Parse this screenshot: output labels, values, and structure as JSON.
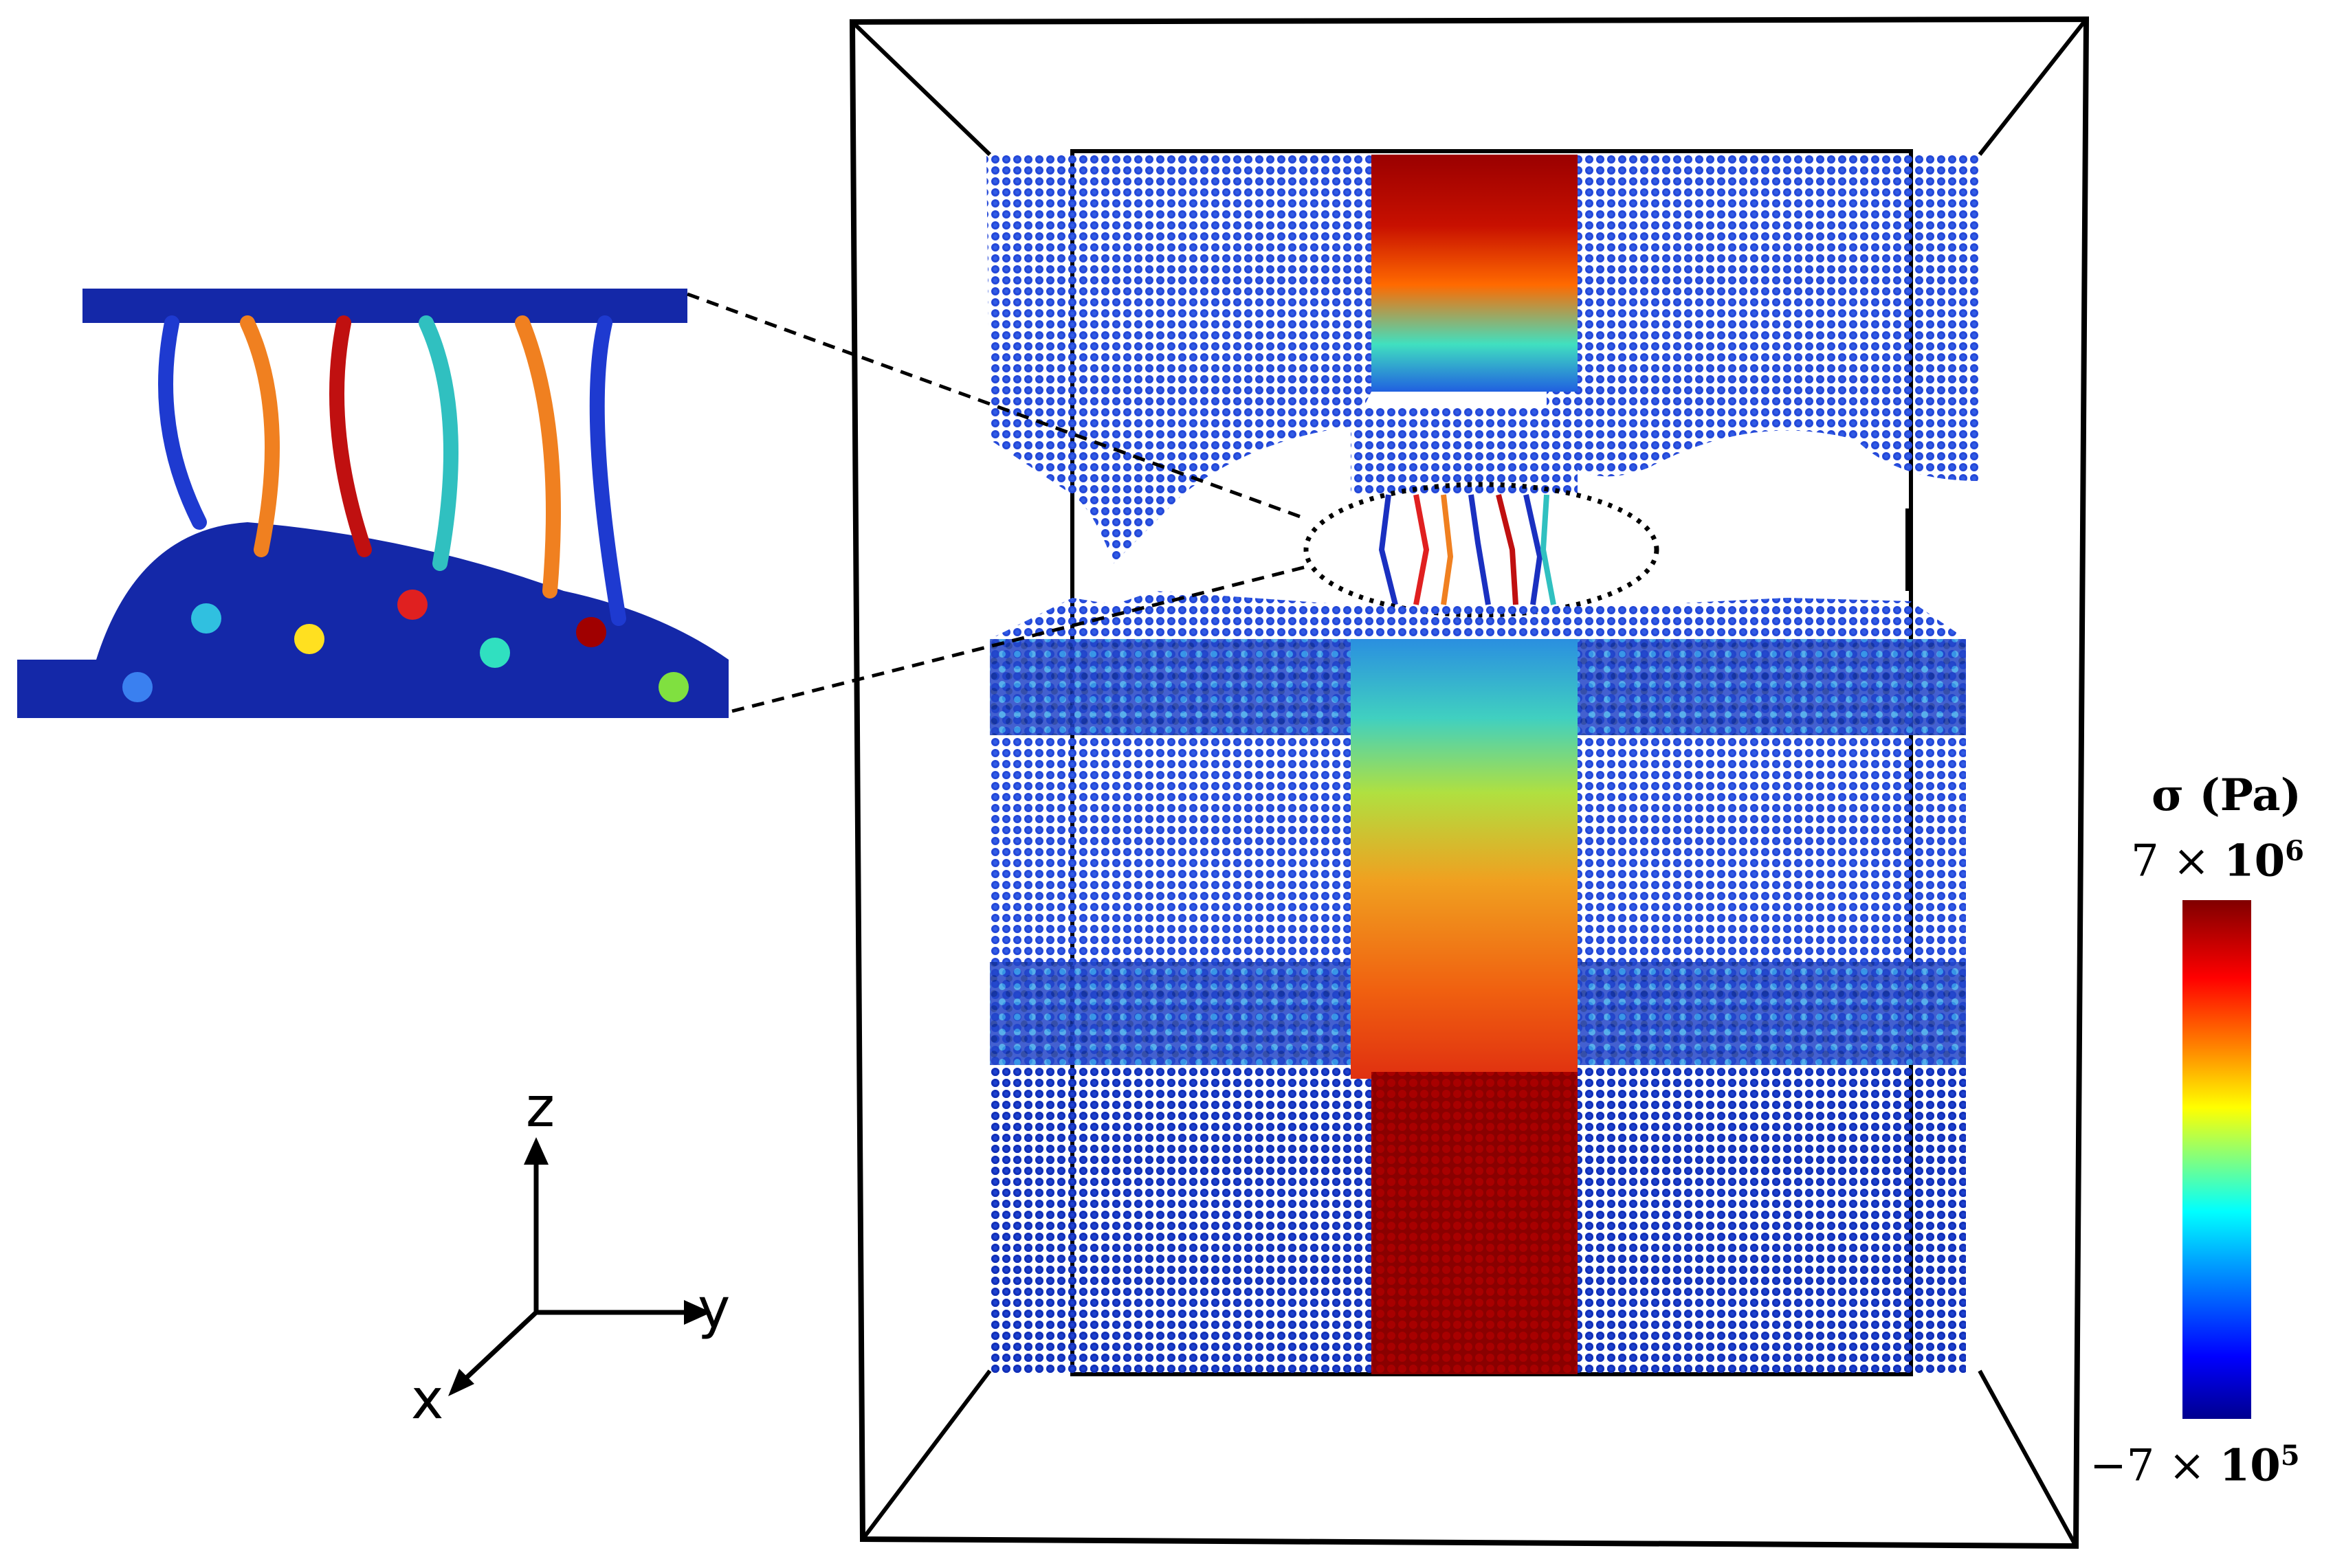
{
  "colorbar": {
    "title": "σ (Pa)",
    "max_coeff": "7 ×",
    "max_base": "10",
    "max_exp": "6",
    "min_coeff": "−7 ×",
    "min_base": "10",
    "min_exp": "5",
    "colors": [
      "#00008f",
      "#0000ff",
      "#00a0ff",
      "#00ffff",
      "#80ff80",
      "#ffff00",
      "#ff8000",
      "#ff0000",
      "#800000"
    ]
  },
  "axes": {
    "z": "z",
    "y": "y",
    "x": "x"
  },
  "colors": {
    "low_stress": "#1a3fd0",
    "background_region": "#2950e0",
    "high_stress": "#9a0000",
    "mid_stress": "#f05a10"
  }
}
